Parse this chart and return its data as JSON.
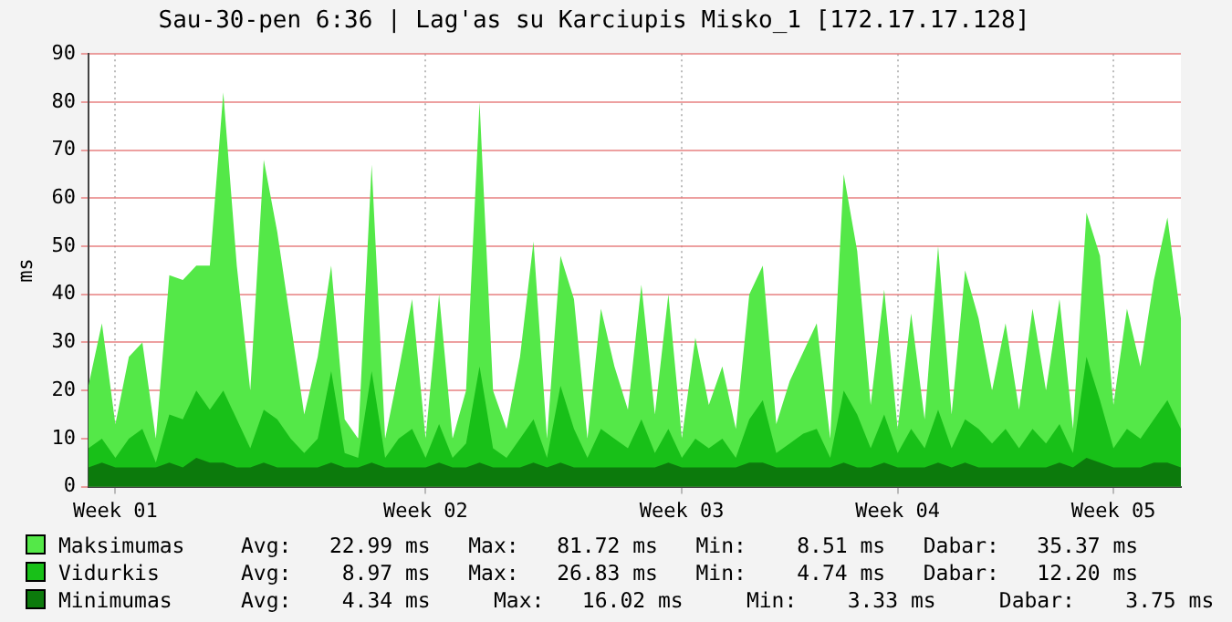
{
  "chart_data": {
    "type": "area",
    "title": "Sau-30-pen 6:36 | Lag'as su Karciupis Misko_1 [172.17.17.128]",
    "ylabel": "ms",
    "categories": [
      null,
      null,
      "Week 01",
      null,
      null,
      null,
      null,
      null,
      null,
      null,
      null,
      null,
      null,
      null,
      null,
      null,
      null,
      null,
      null,
      null,
      null,
      null,
      null,
      null,
      null,
      "Week 02",
      null,
      null,
      null,
      null,
      null,
      null,
      null,
      null,
      null,
      null,
      null,
      null,
      null,
      null,
      null,
      null,
      null,
      null,
      "Week 03",
      null,
      null,
      null,
      null,
      null,
      null,
      null,
      null,
      null,
      null,
      null,
      null,
      null,
      null,
      null,
      "Week 04",
      null,
      null,
      null,
      null,
      null,
      null,
      null,
      null,
      null,
      null,
      null,
      null,
      null,
      null,
      null,
      "Week 05",
      null,
      null,
      null,
      null,
      null
    ],
    "series": [
      {
        "name": "Maksimumas",
        "color": "#54e848",
        "values": [
          21,
          34,
          13,
          27,
          30,
          10,
          44,
          43,
          46,
          46,
          82,
          46,
          20,
          68,
          53,
          34,
          15,
          27,
          46,
          14,
          10,
          67,
          10,
          24,
          39,
          10,
          40,
          10,
          20,
          80,
          20,
          12,
          27,
          51,
          10,
          48,
          39,
          10,
          37,
          25,
          16,
          42,
          15,
          40,
          10,
          31,
          17,
          25,
          12,
          40,
          46,
          13,
          22,
          28,
          34,
          10,
          65,
          49,
          17,
          41,
          12,
          36,
          14,
          50,
          15,
          45,
          35,
          20,
          34,
          16,
          37,
          20,
          39,
          12,
          57,
          48,
          17,
          37,
          25,
          43,
          56,
          35
        ]
      },
      {
        "name": "Vidurkis",
        "color": "#18c018",
        "values": [
          8,
          10,
          6,
          10,
          12,
          5,
          15,
          14,
          20,
          16,
          20,
          14,
          8,
          16,
          14,
          10,
          7,
          10,
          24,
          7,
          6,
          24,
          6,
          10,
          12,
          6,
          13,
          6,
          9,
          25,
          8,
          6,
          10,
          14,
          6,
          21,
          12,
          6,
          12,
          10,
          8,
          14,
          7,
          12,
          6,
          10,
          8,
          10,
          6,
          14,
          18,
          7,
          9,
          11,
          12,
          6,
          20,
          15,
          8,
          15,
          7,
          12,
          8,
          16,
          8,
          14,
          12,
          9,
          12,
          8,
          12,
          9,
          13,
          7,
          27,
          18,
          8,
          12,
          10,
          14,
          18,
          12
        ]
      },
      {
        "name": "Minimumas",
        "color": "#0c7a0c",
        "values": [
          4,
          5,
          4,
          4,
          4,
          4,
          5,
          4,
          6,
          5,
          5,
          4,
          4,
          5,
          4,
          4,
          4,
          4,
          5,
          4,
          4,
          5,
          4,
          4,
          4,
          4,
          5,
          4,
          4,
          5,
          4,
          4,
          4,
          5,
          4,
          5,
          4,
          4,
          4,
          4,
          4,
          4,
          4,
          5,
          4,
          4,
          4,
          4,
          4,
          5,
          5,
          4,
          4,
          4,
          4,
          4,
          5,
          4,
          4,
          5,
          4,
          4,
          4,
          5,
          4,
          5,
          4,
          4,
          4,
          4,
          4,
          4,
          5,
          4,
          6,
          5,
          4,
          4,
          4,
          5,
          5,
          4
        ]
      }
    ],
    "ylim": [
      0,
      90
    ],
    "yticks": [
      0,
      10,
      20,
      30,
      40,
      50,
      60,
      70,
      80,
      90
    ],
    "grid": true,
    "legend": "bottom",
    "annotations": [
      "Avg:   22.99 ms   Max:   81.72 ms   Min:    8.51 ms   Dabar:   35.37 ms",
      "Avg:    8.97 ms   Max:   26.83 ms   Min:    4.74 ms   Dabar:   12.20 ms",
      "Avg:    4.34 ms     Max:   16.02 ms     Min:    3.33 ms     Dabar:    3.75 ms"
    ]
  }
}
